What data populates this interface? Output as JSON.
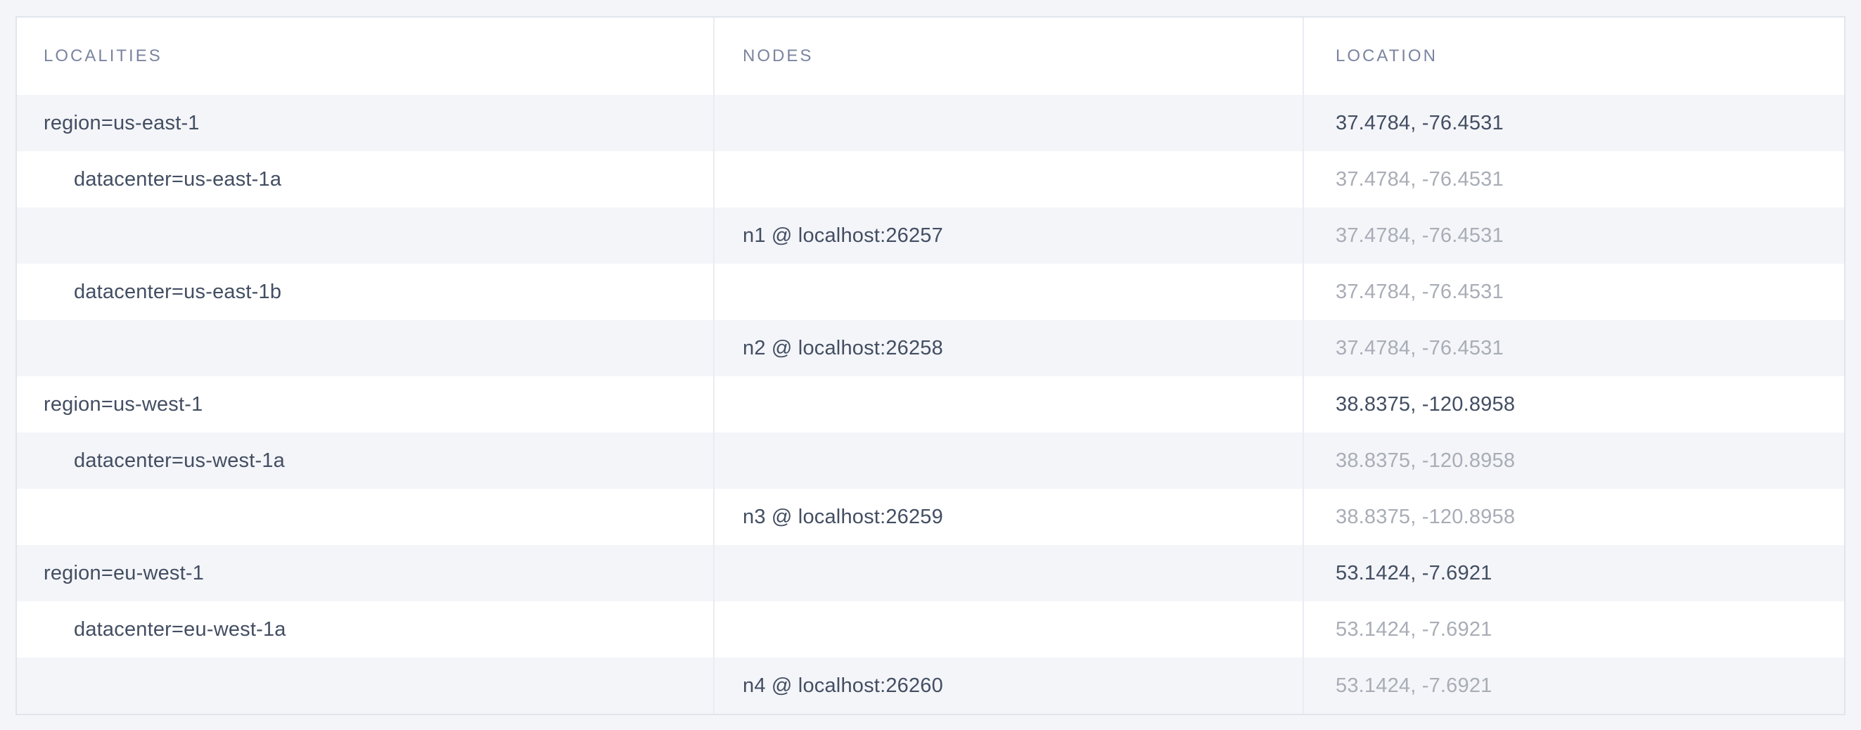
{
  "table": {
    "columns": [
      "LOCALITIES",
      "NODES",
      "LOCATION"
    ],
    "rows": [
      {
        "locality": "region=us-east-1",
        "indent": 0,
        "node": "",
        "location": "37.4784, -76.4531",
        "location_muted": false
      },
      {
        "locality": "datacenter=us-east-1a",
        "indent": 1,
        "node": "",
        "location": "37.4784, -76.4531",
        "location_muted": true
      },
      {
        "locality": "",
        "indent": 0,
        "node": "n1 @ localhost:26257",
        "location": "37.4784, -76.4531",
        "location_muted": true
      },
      {
        "locality": "datacenter=us-east-1b",
        "indent": 1,
        "node": "",
        "location": "37.4784, -76.4531",
        "location_muted": true
      },
      {
        "locality": "",
        "indent": 0,
        "node": "n2 @ localhost:26258",
        "location": "37.4784, -76.4531",
        "location_muted": true
      },
      {
        "locality": "region=us-west-1",
        "indent": 0,
        "node": "",
        "location": "38.8375, -120.8958",
        "location_muted": false
      },
      {
        "locality": "datacenter=us-west-1a",
        "indent": 1,
        "node": "",
        "location": "38.8375, -120.8958",
        "location_muted": true
      },
      {
        "locality": "",
        "indent": 0,
        "node": "n3 @ localhost:26259",
        "location": "38.8375, -120.8958",
        "location_muted": true
      },
      {
        "locality": "region=eu-west-1",
        "indent": 0,
        "node": "",
        "location": "53.1424, -7.6921",
        "location_muted": false
      },
      {
        "locality": "datacenter=eu-west-1a",
        "indent": 1,
        "node": "",
        "location": "53.1424, -7.6921",
        "location_muted": true
      },
      {
        "locality": "",
        "indent": 0,
        "node": "n4 @ localhost:26260",
        "location": "53.1424, -7.6921",
        "location_muted": true
      }
    ]
  },
  "colors": {
    "page_background": "#f4f5f9",
    "row_stripe": "#f4f5f9",
    "row_white": "#ffffff",
    "outer_border": "#e0e4ec",
    "column_divider": "#e9ecf2",
    "header_text": "#7b84a0",
    "primary_text": "#434e62",
    "muted_text": "#a8adb6"
  }
}
